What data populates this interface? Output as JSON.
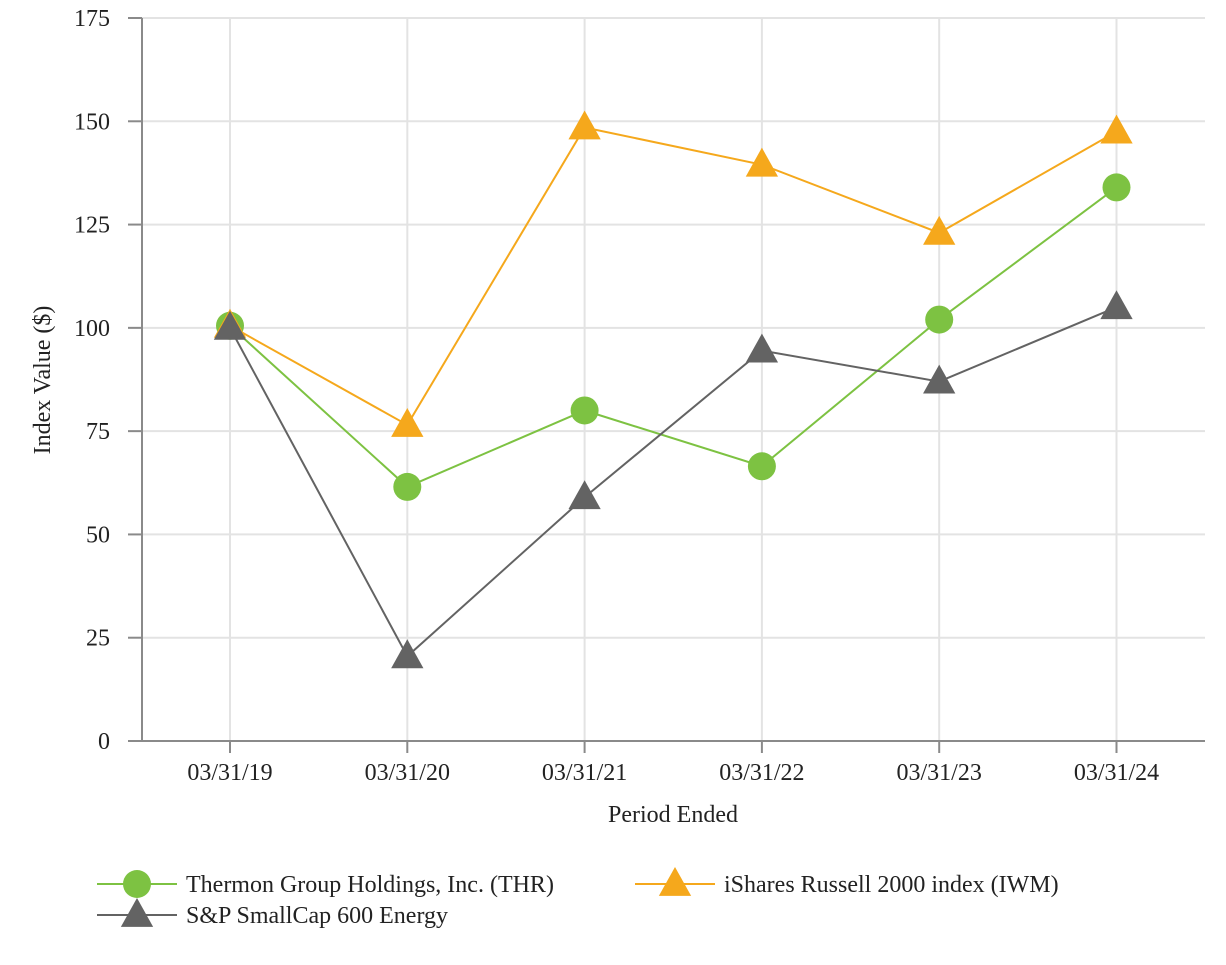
{
  "chart_data": {
    "type": "line",
    "title": "",
    "xlabel": "Period Ended",
    "ylabel": "Index Value ($)",
    "categories": [
      "03/31/19",
      "03/31/20",
      "03/31/21",
      "03/31/22",
      "03/31/23",
      "03/31/24"
    ],
    "ylim": [
      0,
      175
    ],
    "yticks": [
      0,
      25,
      50,
      75,
      100,
      125,
      150,
      175
    ],
    "grid": true,
    "legend_position": "bottom",
    "series": [
      {
        "name": "Thermon Group Holdings, Inc. (THR)",
        "marker": "circle",
        "color": "#7dc242",
        "values": [
          100.5,
          61.5,
          80,
          66.5,
          102,
          134
        ]
      },
      {
        "name": "iShares Russell 2000 index (IWM)",
        "marker": "triangle",
        "color": "#f5a81c",
        "values": [
          100.5,
          76.5,
          148.5,
          139.5,
          123,
          147.5
        ]
      },
      {
        "name": "S&P SmallCap 600 Energy",
        "marker": "triangle",
        "color": "#636363",
        "values": [
          100,
          20.5,
          59,
          94.5,
          87,
          105
        ]
      }
    ]
  }
}
